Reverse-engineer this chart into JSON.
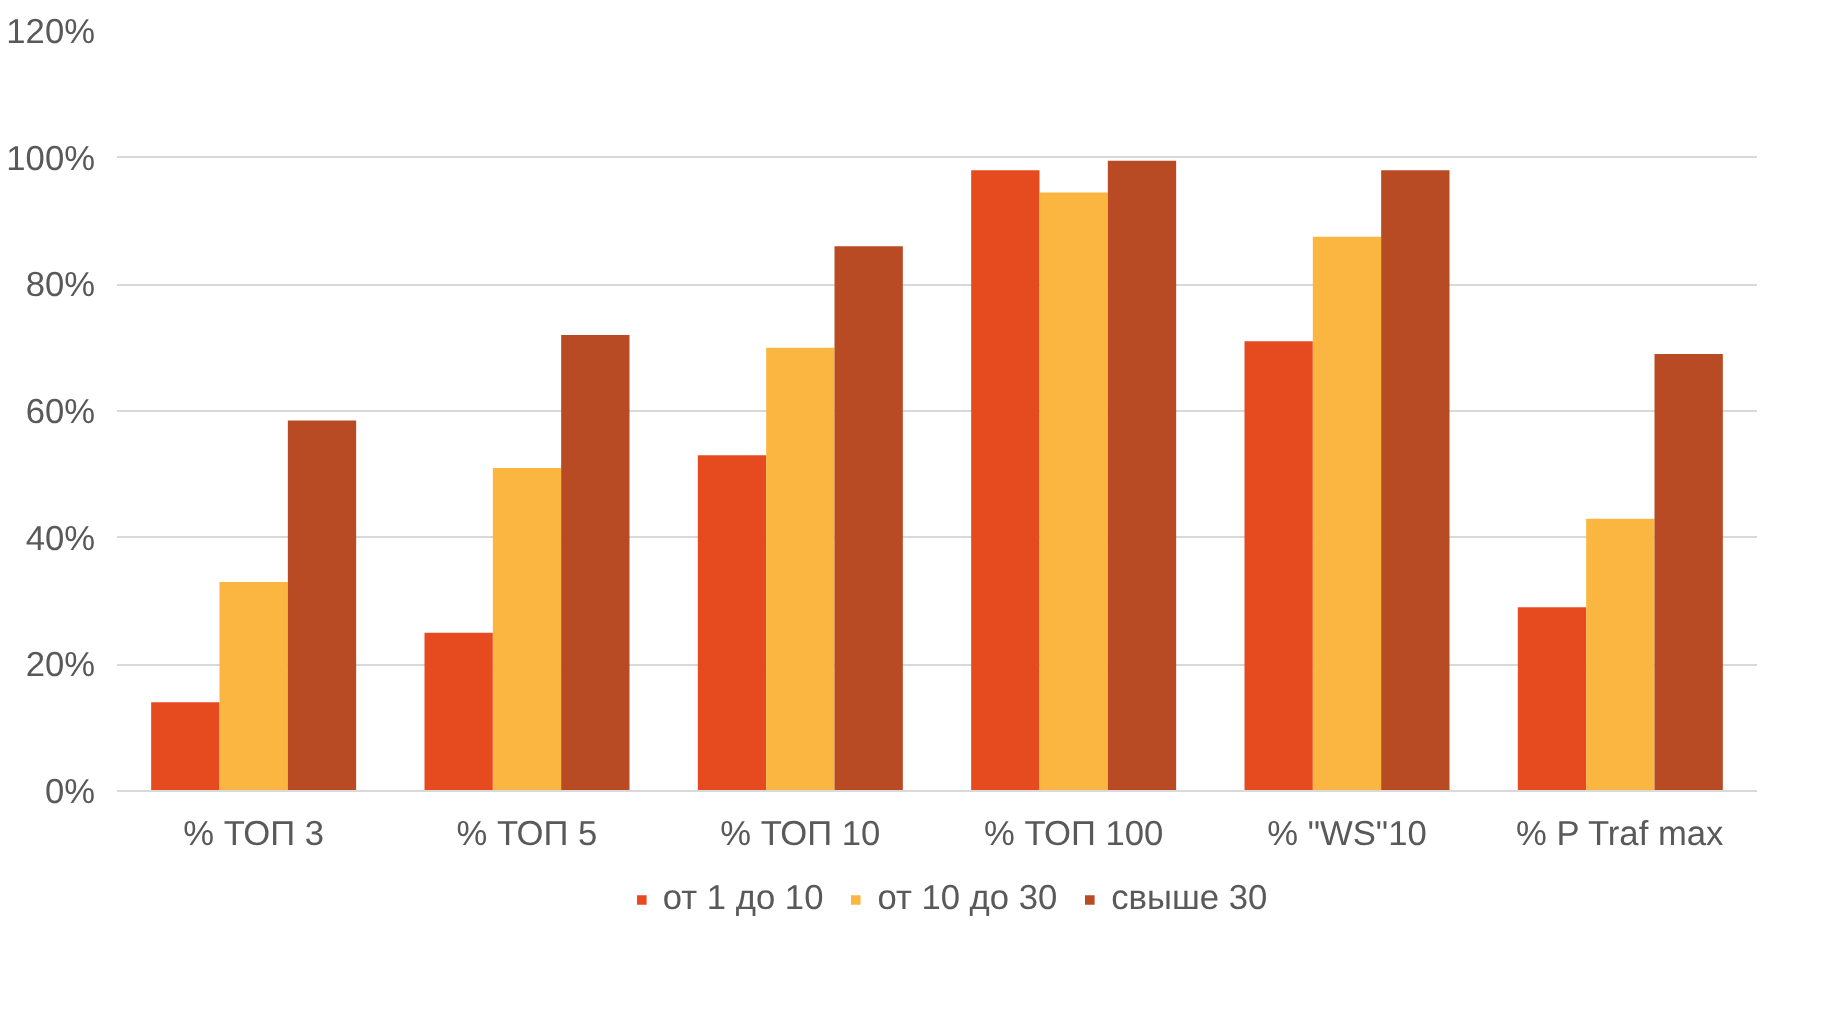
{
  "chart_data": {
    "type": "bar",
    "categories": [
      "% ТОП 3",
      "% ТОП 5",
      "% ТОП 10",
      "% ТОП 100",
      "% \"WS\"10",
      "% P Traf max"
    ],
    "series": [
      {
        "name": "от 1 до 10",
        "color": "#e64a1f",
        "values": [
          14,
          25,
          53,
          98,
          71,
          29
        ]
      },
      {
        "name": "от 10 до 30",
        "color": "#fbb642",
        "values": [
          33,
          51,
          70,
          94.5,
          87.5,
          43
        ]
      },
      {
        "name": "свыше 30",
        "color": "#b84a24",
        "values": [
          58.5,
          72,
          86,
          99.5,
          98,
          69
        ]
      }
    ],
    "ylim": [
      0,
      120
    ],
    "yticks": [
      {
        "value": 0,
        "label": "0%"
      },
      {
        "value": 20,
        "label": "20%"
      },
      {
        "value": 40,
        "label": "40%"
      },
      {
        "value": 60,
        "label": "60%"
      },
      {
        "value": 80,
        "label": "80%"
      },
      {
        "value": 100,
        "label": "100%"
      },
      {
        "value": 120,
        "label": "120%"
      }
    ],
    "grid": "y",
    "legend": "bottom"
  }
}
